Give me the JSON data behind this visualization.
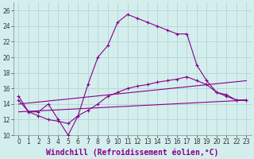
{
  "xlabel": "Windchill (Refroidissement éolien,°C)",
  "bg_color": "#d4eeee",
  "grid_color": "#b8d8d8",
  "line_color": "#880088",
  "xlim": [
    -0.5,
    23.5
  ],
  "ylim": [
    10,
    27
  ],
  "xticks": [
    0,
    1,
    2,
    3,
    4,
    5,
    6,
    7,
    8,
    9,
    10,
    11,
    12,
    13,
    14,
    15,
    16,
    17,
    18,
    19,
    20,
    21,
    22,
    23
  ],
  "yticks": [
    10,
    12,
    14,
    16,
    18,
    20,
    22,
    24,
    26
  ],
  "curve1_x": [
    0,
    1,
    2,
    3,
    4,
    5,
    6,
    7,
    8,
    9,
    10,
    11,
    12,
    13,
    14,
    15,
    16,
    17,
    18,
    19,
    20,
    21,
    22,
    23
  ],
  "curve1_y": [
    15.0,
    13.0,
    13.0,
    14.0,
    12.0,
    10.0,
    12.5,
    16.5,
    20.0,
    21.5,
    24.5,
    25.5,
    25.0,
    24.5,
    24.0,
    23.5,
    23.0,
    23.0,
    19.0,
    17.0,
    15.5,
    15.2,
    14.5,
    14.5
  ],
  "curve2_x": [
    0,
    1,
    2,
    3,
    4,
    5,
    6,
    7,
    8,
    9,
    10,
    11,
    12,
    13,
    14,
    15,
    16,
    17,
    18,
    19,
    20,
    21,
    22,
    23
  ],
  "curve2_y": [
    14.5,
    13.0,
    12.5,
    12.0,
    11.8,
    11.5,
    12.5,
    13.2,
    14.0,
    15.0,
    15.5,
    16.0,
    16.3,
    16.5,
    16.8,
    17.0,
    17.2,
    17.5,
    17.0,
    16.5,
    15.5,
    15.0,
    14.5,
    14.5
  ],
  "curve3_x": [
    0,
    23
  ],
  "curve3_y": [
    14.0,
    17.0
  ],
  "curve4_x": [
    0,
    23
  ],
  "curve4_y": [
    13.0,
    14.5
  ],
  "fontsize_label": 7,
  "tick_fontsize": 5.5
}
